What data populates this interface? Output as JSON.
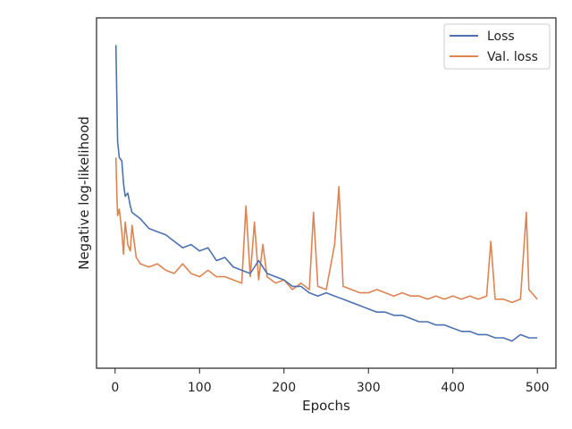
{
  "chart_data": {
    "type": "line",
    "xlabel": "Epochs",
    "ylabel": "Negative log-likelihood",
    "xlim": [
      -22,
      522
    ],
    "ylim": [
      0,
      100
    ],
    "y_ticklabels_shown": false,
    "x_ticks": [
      0,
      100,
      200,
      300,
      400,
      500
    ],
    "x_ticklabels": [
      "0",
      "100",
      "200",
      "300",
      "400",
      "500"
    ],
    "grid": false,
    "legend": {
      "position": "top-right"
    },
    "series": [
      {
        "name": "Loss",
        "color": "#4c72b0",
        "x": [
          1,
          2,
          3,
          5,
          8,
          10,
          12,
          15,
          18,
          20,
          25,
          30,
          40,
          50,
          60,
          70,
          80,
          90,
          100,
          110,
          120,
          130,
          140,
          150,
          160,
          170,
          180,
          190,
          200,
          210,
          220,
          230,
          240,
          250,
          260,
          270,
          280,
          290,
          300,
          310,
          320,
          330,
          340,
          350,
          360,
          370,
          380,
          390,
          400,
          410,
          420,
          430,
          440,
          450,
          460,
          470,
          480,
          490,
          500
        ],
        "values": [
          96,
          80,
          66,
          61,
          60,
          53,
          49,
          50,
          46,
          44,
          43,
          42,
          39,
          38,
          37,
          35,
          33,
          34,
          32,
          33,
          29,
          30,
          27,
          26,
          25,
          29,
          25,
          24,
          23,
          21,
          21,
          19,
          18,
          19,
          18,
          17,
          16,
          15,
          14,
          13,
          13,
          12,
          12,
          11,
          10,
          10,
          9,
          9,
          8,
          7,
          7,
          6,
          6,
          5,
          5,
          4,
          6,
          5,
          5
        ]
      },
      {
        "name": "Val. loss",
        "color": "#dd8452",
        "x": [
          1,
          2,
          3,
          5,
          8,
          10,
          12,
          15,
          18,
          20,
          25,
          30,
          40,
          50,
          60,
          70,
          80,
          90,
          100,
          110,
          120,
          130,
          140,
          150,
          155,
          160,
          165,
          170,
          175,
          180,
          190,
          200,
          210,
          220,
          230,
          235,
          240,
          250,
          260,
          265,
          270,
          280,
          290,
          300,
          310,
          320,
          330,
          340,
          350,
          360,
          370,
          380,
          390,
          400,
          410,
          420,
          430,
          440,
          445,
          450,
          460,
          470,
          480,
          487,
          490,
          500
        ],
        "values": [
          61,
          50,
          43,
          45,
          38,
          31,
          41,
          34,
          32,
          40,
          30,
          28,
          27,
          28,
          26,
          25,
          28,
          25,
          24,
          26,
          24,
          24,
          23,
          22,
          46,
          24,
          41,
          23,
          34,
          24,
          22,
          23,
          20,
          22,
          20,
          44,
          21,
          20,
          34,
          52,
          21,
          20,
          19,
          19,
          20,
          19,
          18,
          19,
          18,
          18,
          17,
          18,
          17,
          18,
          17,
          18,
          17,
          18,
          35,
          17,
          17,
          16,
          17,
          44,
          20,
          17
        ]
      }
    ]
  }
}
